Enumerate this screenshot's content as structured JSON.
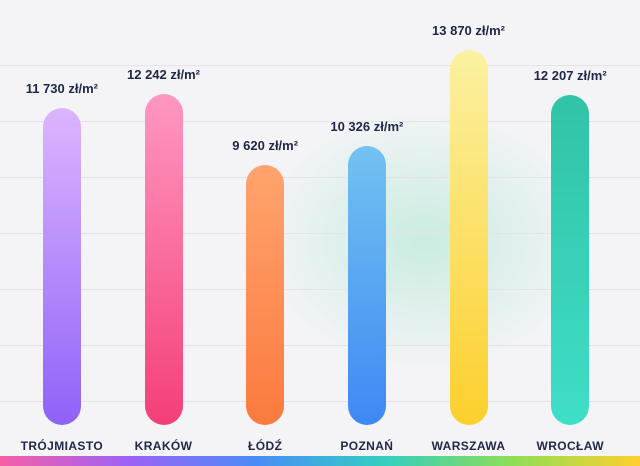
{
  "chart_data": {
    "type": "bar",
    "title": "",
    "unit": "zł/m²",
    "categories": [
      "TRÓJMIASTO",
      "KRAKÓW",
      "ŁÓDŹ",
      "POZNAŃ",
      "WARSZAWA",
      "WROCŁAW"
    ],
    "values": [
      11730,
      12242,
      9620,
      10326,
      13870,
      12207
    ],
    "ylim": [
      0,
      13870
    ],
    "grid": "horizontal",
    "legend": "none",
    "bars": [
      {
        "city": "TRÓJMIASTO",
        "value": 11730,
        "value_label": "11 730 zł/m²",
        "color_top": "#dcb5fe",
        "color_bottom": "#9061f8"
      },
      {
        "city": "KRAKÓW",
        "value": 12242,
        "value_label": "12 242 zł/m²",
        "color_top": "#ff97c2",
        "color_bottom": "#f43f77"
      },
      {
        "city": "ŁÓDŹ",
        "value": 9620,
        "value_label": "9 620 zł/m²",
        "color_top": "#ffa46d",
        "color_bottom": "#fb7a3e"
      },
      {
        "city": "POZNAŃ",
        "value": 10326,
        "value_label": "10 326 zł/m²",
        "color_top": "#74c2f1",
        "color_bottom": "#3d89f4"
      },
      {
        "city": "WARSZAWA",
        "value": 13870,
        "value_label": "13 870 zł/m²",
        "color_top": "#fbf1a1",
        "color_bottom": "#fccf2c"
      },
      {
        "city": "WROCŁAW",
        "value": 12207,
        "value_label": "12 207 zł/m²",
        "color_top": "#31c3a7",
        "color_bottom": "#3fdec7"
      }
    ],
    "colors": {
      "text": "#20284a",
      "background": "#f4f4f6",
      "gridline": "#e4e4e8",
      "glow": "#94e2c7",
      "footer_gradient": [
        "#f75fa8",
        "#9d62f6",
        "#4a8cf7",
        "#33cfc0",
        "#8ede56",
        "#ffd02e"
      ]
    }
  }
}
